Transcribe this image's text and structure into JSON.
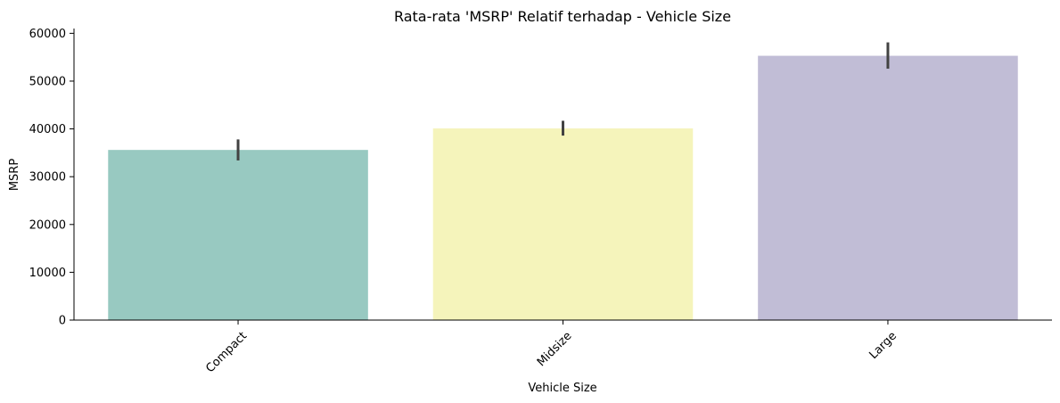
{
  "chart_data": {
    "type": "bar",
    "title": "Rata-rata 'MSRP' Relatif terhadap - Vehicle Size",
    "xlabel": "Vehicle Size",
    "ylabel": "MSRP",
    "categories": [
      "Compact",
      "Midsize",
      "Large"
    ],
    "values": [
      35600,
      40100,
      55300
    ],
    "error_bars": [
      [
        33400,
        37800
      ],
      [
        38600,
        41700
      ],
      [
        52600,
        58100
      ]
    ],
    "colors": [
      "#98c9c1",
      "#f5f4bb",
      "#c1bdd6"
    ],
    "errorbar_color": "#424242",
    "ylim": [
      0,
      61000
    ],
    "yticks": [
      0,
      10000,
      20000,
      30000,
      40000,
      50000,
      60000
    ],
    "ytick_labels": [
      "0",
      "10000",
      "20000",
      "30000",
      "40000",
      "50000",
      "60000"
    ],
    "xtick_rotation": 45,
    "grid": false,
    "legend": "none"
  }
}
